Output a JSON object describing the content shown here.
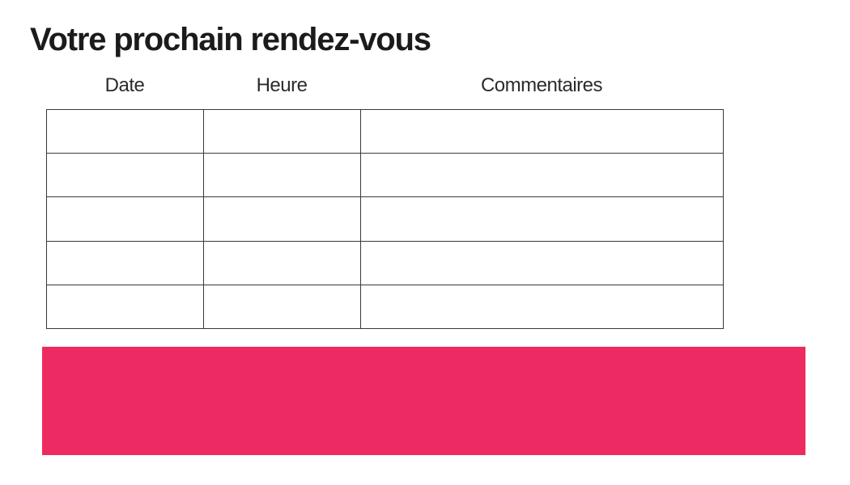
{
  "page": {
    "title": "Votre prochain rendez-vous"
  },
  "appointment_table": {
    "headers": [
      "Date",
      "Heure",
      "Commentaires"
    ],
    "rows": [
      [
        "",
        "",
        ""
      ],
      [
        "",
        "",
        ""
      ],
      [
        "",
        "",
        ""
      ],
      [
        "",
        "",
        ""
      ],
      [
        "",
        "",
        ""
      ]
    ]
  },
  "colors": {
    "accent_pink": "#ED2B62",
    "table_border": "#3a3a3a",
    "title_text": "#1b1b1b"
  }
}
